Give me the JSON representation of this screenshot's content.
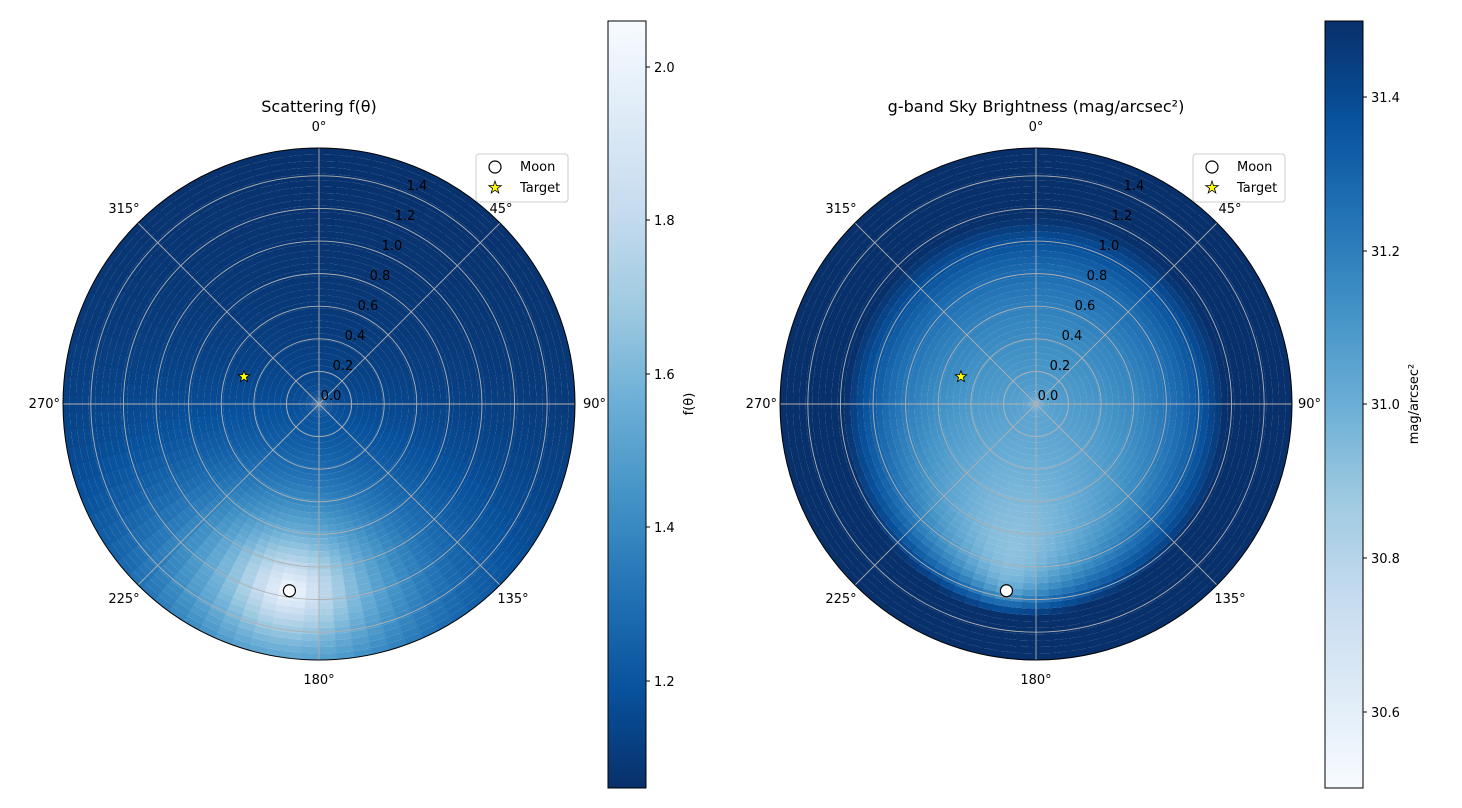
{
  "chart_data": [
    {
      "type": "heatmap",
      "projection": "polar",
      "title": "Scattering f(θ)",
      "theta_zero_location": "top",
      "theta_direction": "clockwise",
      "angle_tick_labels": [
        "0°",
        "45°",
        "90°",
        "135°",
        "180°",
        "225°",
        "270°",
        "315°"
      ],
      "radial_tick_labels": [
        "0.0",
        "0.2",
        "0.4",
        "0.6",
        "0.8",
        "1.0",
        "1.2",
        "1.4"
      ],
      "rlim": [
        0,
        1.5708
      ],
      "grid": true,
      "colormap": "Blues_r",
      "colormap_colors": [
        "#08306b",
        "#08519c",
        "#2171b5",
        "#4292c6",
        "#6baed6",
        "#9ecae1",
        "#c6dbef",
        "#deebf7",
        "#f7fbff"
      ],
      "colorbar": {
        "label": "f(θ)",
        "range": [
          1.06,
          2.06
        ],
        "ticks": [
          1.2,
          1.4,
          1.6,
          1.8,
          2.0
        ],
        "tick_labels": [
          "1.2",
          "1.4",
          "1.6",
          "1.8",
          "2.0"
        ]
      },
      "series": [
        {
          "name": "Moon",
          "marker": "circle",
          "color": "#ffffff",
          "azimuth_deg": 189,
          "zenith_rad": 1.16
        },
        {
          "name": "Target",
          "marker": "star",
          "color": "#ffff00",
          "azimuth_deg": 290,
          "zenith_rad": 0.49
        }
      ],
      "legend": {
        "placement": "top-right",
        "entries": [
          "Moon",
          "Target"
        ]
      }
    },
    {
      "type": "heatmap",
      "projection": "polar",
      "title": "g-band Sky Brightness (mag/arcsec²)",
      "theta_zero_location": "top",
      "theta_direction": "clockwise",
      "angle_tick_labels": [
        "0°",
        "45°",
        "90°",
        "135°",
        "180°",
        "225°",
        "270°",
        "315°"
      ],
      "radial_tick_labels": [
        "0.0",
        "0.2",
        "0.4",
        "0.6",
        "0.8",
        "1.0",
        "1.2",
        "1.4"
      ],
      "rlim": [
        0,
        1.5708
      ],
      "grid": true,
      "colormap": "Blues",
      "colormap_colors": [
        "#f7fbff",
        "#deebf7",
        "#c6dbef",
        "#9ecae1",
        "#6baed6",
        "#4292c6",
        "#2171b5",
        "#08519c",
        "#08306b"
      ],
      "colorbar": {
        "label": "mag/arcsec²",
        "range": [
          30.5,
          31.5
        ],
        "ticks": [
          30.6,
          30.8,
          31.0,
          31.2,
          31.4
        ],
        "tick_labels": [
          "30.6",
          "30.8",
          "31.0",
          "31.2",
          "31.4"
        ]
      },
      "series": [
        {
          "name": "Moon",
          "marker": "circle",
          "color": "#ffffff",
          "azimuth_deg": 189,
          "zenith_rad": 1.16
        },
        {
          "name": "Target",
          "marker": "star",
          "color": "#ffff00",
          "azimuth_deg": 290,
          "zenith_rad": 0.49
        }
      ],
      "legend": {
        "placement": "top-right",
        "entries": [
          "Moon",
          "Target"
        ]
      }
    }
  ]
}
